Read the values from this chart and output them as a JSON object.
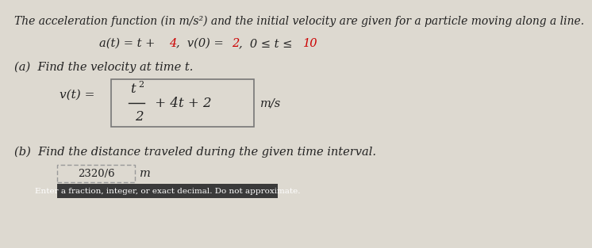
{
  "bg_color": "#ddd9d0",
  "title_line": "The acceleration function (in m/s²) and the initial velocity are given for a particle moving along a line.",
  "part_a_label": "(a)  Find the velocity at time t.",
  "part_b_label": "(b)  Find the distance traveled during the given time interval.",
  "answer_box": "2320/6",
  "answer_unit": "m",
  "hint_box": "Enter a fraction, integer, or exact decimal. Do not approximate.",
  "red_color": "#cc0000",
  "dark_color": "#222222",
  "hint_bg": "#3a3a3a",
  "hint_text_color": "#ffffff",
  "box_face": "#ddd9d0",
  "font_size_title": 10,
  "font_size_body": 10.5,
  "font_size_formula": 11
}
